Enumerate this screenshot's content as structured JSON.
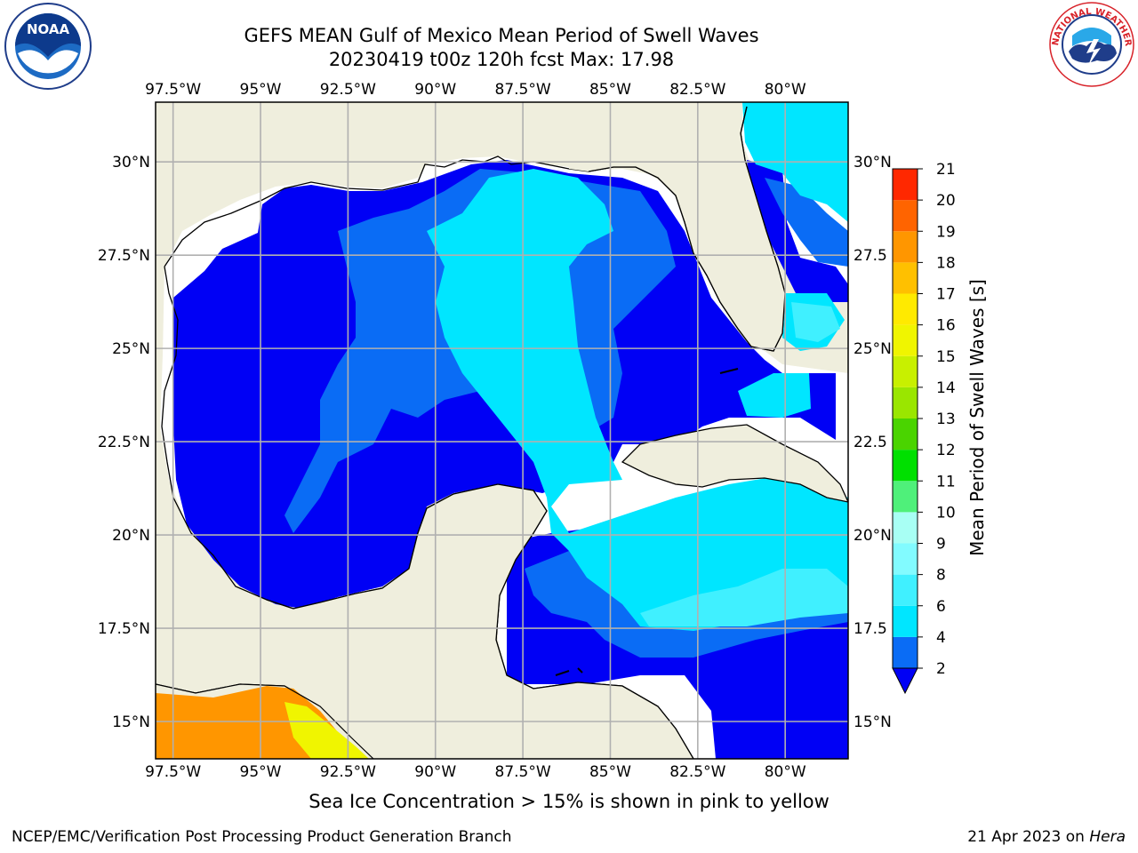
{
  "title": {
    "line1": "GEFS MEAN Gulf of Mexico Mean Period of Swell Waves",
    "line2": "20230419 t00z 120h fcst   Max: 17.98"
  },
  "axes": {
    "lon_ticks": [
      "97.5°W",
      "95°W",
      "92.5°W",
      "90°W",
      "87.5°W",
      "85°W",
      "82.5°W",
      "80°W"
    ],
    "lon_values": [
      -97.5,
      -95,
      -92.5,
      -90,
      -87.5,
      -85,
      -82.5,
      -80
    ],
    "lat_ticks_left": [
      "30°N",
      "27.5°N",
      "25°N",
      "22.5°N",
      "20°N",
      "17.5°N",
      "15°N"
    ],
    "lat_ticks_right": [
      "30°N",
      "27.5",
      "25°N",
      "22.5",
      "20°N",
      "17.5",
      "15°N"
    ],
    "lat_values": [
      30,
      27.5,
      25,
      22.5,
      20,
      17.5,
      15
    ],
    "lon_range": [
      -98,
      -78.2
    ],
    "lat_range": [
      14,
      31.6
    ],
    "grid": true
  },
  "colorbar": {
    "label": "Mean Period of Swell Waves [s]",
    "ticks": [
      "2",
      "4",
      "6",
      "8",
      "9",
      "10",
      "11",
      "12",
      "13",
      "14",
      "15",
      "16",
      "17",
      "18",
      "19",
      "20",
      "21"
    ],
    "values": [
      2,
      4,
      6,
      8,
      9,
      10,
      11,
      12,
      13,
      14,
      15,
      16,
      17,
      18,
      19,
      20,
      21
    ],
    "colors": [
      "#0a6cf5",
      "#00e6ff",
      "#40f0ff",
      "#82fbff",
      "#a8fff4",
      "#4ff07a",
      "#00e000",
      "#4ad400",
      "#9ae600",
      "#c8f000",
      "#f0f500",
      "#ffea00",
      "#ffc000",
      "#ff9600",
      "#ff6400",
      "#ff2800"
    ],
    "extend_low_color": "#0000f5"
  },
  "legend_colors": {
    "land": "#efeedd",
    "period_2_4": "#0000f5",
    "period_4_6": "#0a6cf5",
    "period_6_8": "#00e6ff",
    "period_8_9": "#40f0ff",
    "ice_high": "#ff9600",
    "ice_mid": "#f0f500"
  },
  "logos": {
    "noaa": "NOAA",
    "nws": "NATIONAL WEATHER SERVICE"
  },
  "note": "Sea Ice Concentration > 15% is shown in pink to yellow",
  "footer": {
    "left": "NCEP/EMC/Verification Post Processing Product Generation Branch",
    "right_date": "21 Apr 2023 on ",
    "right_host": "Hera"
  }
}
